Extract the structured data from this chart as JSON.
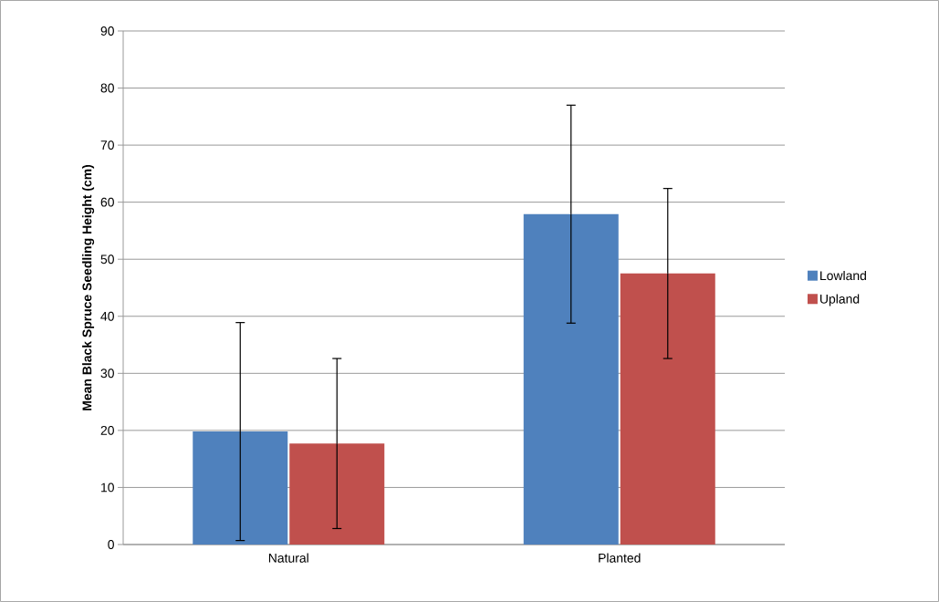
{
  "chart_data": {
    "type": "bar",
    "ylabel": "Mean Black Spruce Seedling Height (cm)",
    "categories": [
      "Natural",
      "Planted"
    ],
    "series": [
      {
        "name": "Lowland",
        "color": "#4f81bd",
        "values": [
          19.8,
          57.9
        ],
        "errors": [
          19.1,
          19.1
        ]
      },
      {
        "name": "Upland",
        "color": "#c0504d",
        "values": [
          17.7,
          47.5
        ],
        "errors": [
          14.9,
          14.9
        ]
      }
    ],
    "ylim": [
      0,
      90
    ],
    "yticks": [
      0,
      10,
      20,
      30,
      40,
      50,
      60,
      70,
      80,
      90
    ],
    "grid": "y",
    "legend": "right"
  }
}
